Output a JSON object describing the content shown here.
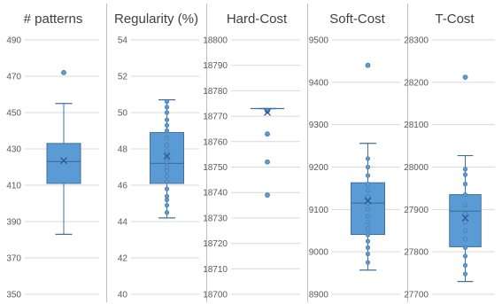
{
  "chart_data": [
    {
      "type": "box",
      "title": "# patterns",
      "ylim": [
        350,
        490
      ],
      "yticks": [
        350,
        370,
        390,
        410,
        430,
        450,
        470,
        490
      ],
      "tick_labels": [
        "350",
        "370",
        "390",
        "410",
        "430",
        "450",
        "470",
        "490"
      ],
      "box": {
        "whisker_low": 383,
        "q1": 411,
        "median": 423,
        "q3": 433,
        "whisker_high": 455,
        "mean": 423.5
      },
      "outliers": [
        472
      ],
      "points": []
    },
    {
      "type": "box",
      "title": "Regularity (%)",
      "ylim": [
        40,
        54
      ],
      "yticks": [
        40,
        42,
        44,
        46,
        48,
        50,
        52,
        54
      ],
      "tick_labels": [
        "40",
        "42",
        "44",
        "46",
        "48",
        "50",
        "52",
        "54"
      ],
      "box": {
        "whisker_low": 44.2,
        "q1": 46.1,
        "median": 47.2,
        "q3": 48.9,
        "whisker_high": 50.7,
        "mean": 47.6
      },
      "outliers": [],
      "points": [
        44.5,
        44.9,
        45.2,
        45.4,
        45.8,
        46.2,
        46.5,
        46.8,
        47.0,
        47.3,
        47.6,
        47.9,
        48.2,
        48.6,
        49.0,
        49.3,
        49.6,
        50.0,
        50.3,
        50.6
      ]
    },
    {
      "type": "box",
      "title": "Hard-Cost",
      "ylim": [
        18700,
        18800
      ],
      "yticks": [
        18700,
        18710,
        18720,
        18730,
        18740,
        18750,
        18760,
        18770,
        18780,
        18790,
        18800
      ],
      "tick_labels": [
        "18700",
        "18710",
        "18720",
        "18730",
        "18740",
        "18750",
        "18760",
        "18770",
        "18780",
        "18790",
        "18800"
      ],
      "box": {
        "whisker_low": 18773,
        "q1": 18773,
        "median": 18773,
        "q3": 18773,
        "whisker_high": 18773,
        "mean": 18771.5
      },
      "outliers": [
        18739,
        18752,
        18763,
        18772
      ],
      "points": []
    },
    {
      "type": "box",
      "title": "Soft-Cost",
      "ylim": [
        8900,
        9500
      ],
      "yticks": [
        8900,
        9000,
        9100,
        9200,
        9300,
        9400,
        9500
      ],
      "tick_labels": [
        "8900",
        "9000",
        "9100",
        "9200",
        "9300",
        "9400",
        "9500"
      ],
      "box": {
        "whisker_low": 8957,
        "q1": 9041,
        "median": 9115,
        "q3": 9163,
        "whisker_high": 9256,
        "mean": 9120
      },
      "outliers": [
        9440
      ],
      "points": [
        8975,
        8995,
        9010,
        9025,
        9040,
        9055,
        9070,
        9085,
        9100,
        9115,
        9130,
        9145,
        9160,
        9180,
        9200,
        9220
      ]
    },
    {
      "type": "box",
      "title": "T-Cost",
      "ylim": [
        27700,
        28300
      ],
      "yticks": [
        27700,
        27800,
        27900,
        28000,
        28100,
        28200,
        28300
      ],
      "tick_labels": [
        "27700",
        "27800",
        "27900",
        "28000",
        "28100",
        "28200",
        "28300"
      ],
      "box": {
        "whisker_low": 27730,
        "q1": 27812,
        "median": 27896,
        "q3": 27935,
        "whisker_high": 28027,
        "mean": 27880
      },
      "outliers": [
        28212
      ],
      "points": [
        27748,
        27768,
        27790,
        27810,
        27830,
        27850,
        27870,
        27890,
        27910,
        27935,
        27960,
        27982,
        27995
      ]
    }
  ],
  "colors": {
    "box_fill": "#5b9bd5",
    "box_edge": "#41719c",
    "whisker": "#41719c",
    "mean_marker": "#2f5597",
    "gridline": "#d9d9d9",
    "title": "#404040",
    "tick": "#595959"
  }
}
